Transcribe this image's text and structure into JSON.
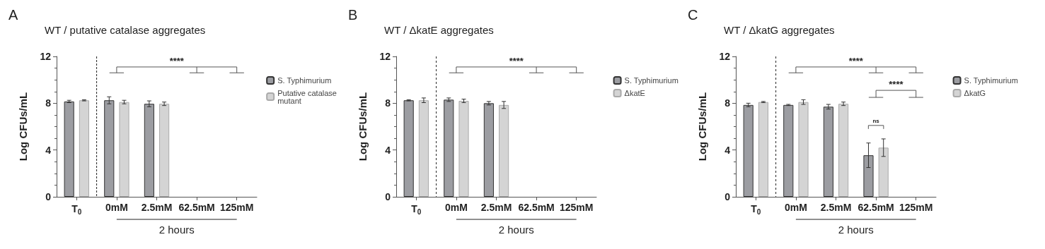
{
  "chart_data": [
    {
      "type": "bar",
      "title": "WT / putative catalase aggregates",
      "ylabel": "Log CFUs/mL",
      "categories": [
        "T$_{0}$",
        "0mM",
        "2.5mM",
        "62.5mM",
        "125mM"
      ],
      "series": [
        {
          "name": "S. Typhimurium",
          "color": "#9c9da2",
          "values": [
            8.15,
            8.25,
            7.95,
            null,
            null
          ],
          "errors": [
            0.1,
            0.3,
            0.25,
            null,
            null
          ]
        },
        {
          "name": "Putative catalase mutant",
          "color": "#d4d4d4",
          "values": [
            8.25,
            8.1,
            7.95,
            null,
            null
          ],
          "errors": [
            0.05,
            0.15,
            0.15,
            null,
            null
          ]
        }
      ],
      "ylim": [
        0,
        12
      ],
      "yticks": [
        0,
        4,
        8,
        12
      ],
      "grid": false,
      "legend": "right",
      "annotations": [
        "A",
        "****",
        "2 hours"
      ]
    },
    {
      "type": "bar",
      "title": "WT / ΔkatE aggregates",
      "ylabel": "Log CFUs/mL",
      "categories": [
        "T$_{0}$",
        "0mM",
        "2.5mM",
        "62.5mM",
        "125mM"
      ],
      "series": [
        {
          "name": "S. Typhimurium",
          "color": "#9c9da2",
          "values": [
            8.25,
            8.3,
            8.0,
            null,
            null
          ],
          "errors": [
            0.05,
            0.15,
            0.15,
            null,
            null
          ]
        },
        {
          "name": "ΔkatE",
          "color": "#d4d4d4",
          "values": [
            8.25,
            8.2,
            7.85,
            null,
            null
          ],
          "errors": [
            0.2,
            0.15,
            0.3,
            null,
            null
          ]
        }
      ],
      "ylim": [
        0,
        12
      ],
      "yticks": [
        0,
        4,
        8,
        12
      ],
      "grid": false,
      "legend": "right",
      "annotations": [
        "B",
        "****",
        "2 hours"
      ]
    },
    {
      "type": "bar",
      "title": "WT / ΔkatG aggregates",
      "ylabel": "Log CFUs/mL",
      "categories": [
        "T$_{0}$",
        "0mM",
        "2.5mM",
        "62.5mM",
        "125mM"
      ],
      "series": [
        {
          "name": "S. Typhimurium",
          "color": "#9c9da2",
          "values": [
            7.85,
            7.85,
            7.7,
            3.55,
            null
          ],
          "errors": [
            0.15,
            0.05,
            0.2,
            1.05,
            null
          ]
        },
        {
          "name": "ΔkatG",
          "color": "#d4d4d4",
          "values": [
            8.1,
            8.1,
            7.95,
            4.2,
            null
          ],
          "errors": [
            0.05,
            0.2,
            0.15,
            0.75,
            null
          ]
        }
      ],
      "ylim": [
        0,
        12
      ],
      "yticks": [
        0,
        4,
        8,
        12
      ],
      "grid": false,
      "legend": "right",
      "annotations": [
        "C",
        "****",
        "****",
        "ns",
        "2 hours"
      ]
    }
  ]
}
